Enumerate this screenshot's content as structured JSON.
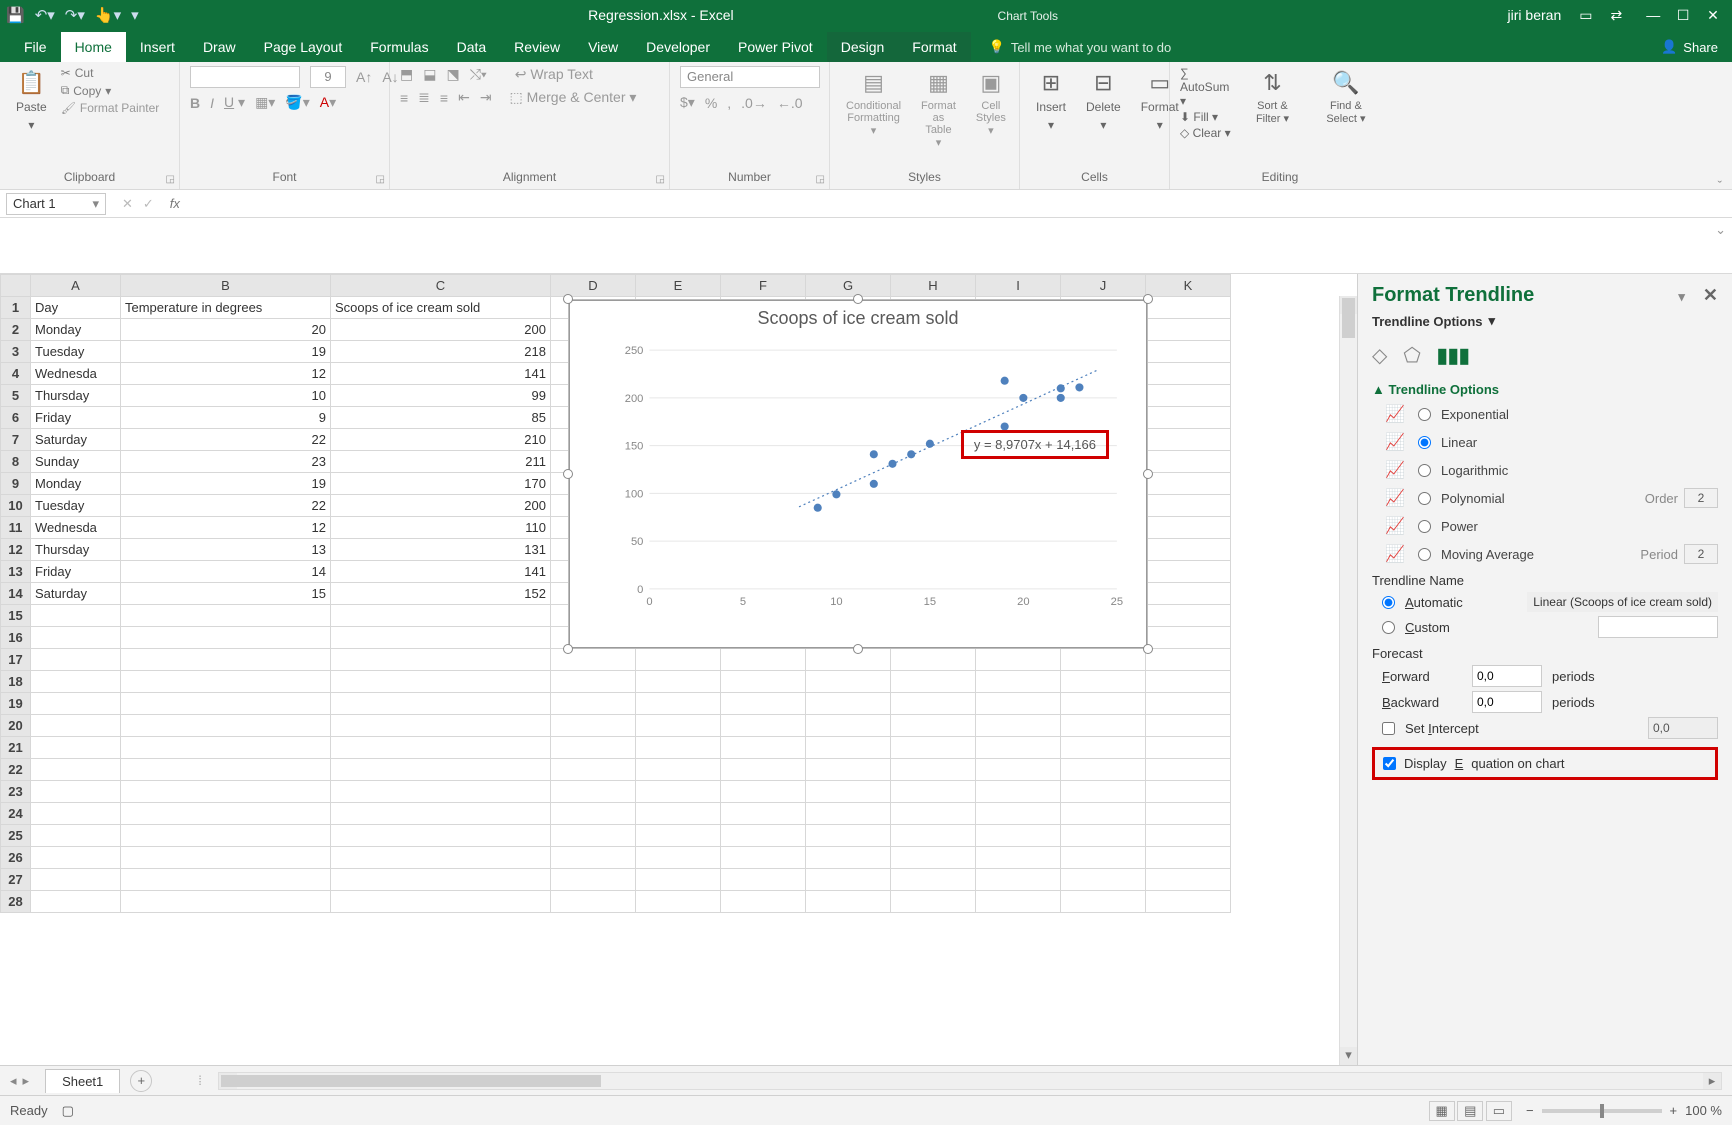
{
  "titlebar": {
    "filename": "Regression.xlsx  -  Excel",
    "chart_tools": "Chart Tools",
    "username": "jiri beran"
  },
  "tabs": {
    "file": "File",
    "items": [
      "Home",
      "Insert",
      "Draw",
      "Page Layout",
      "Formulas",
      "Data",
      "Review",
      "View",
      "Developer",
      "Power Pivot"
    ],
    "context": [
      "Design",
      "Format"
    ],
    "tellme": "Tell me what you want to do",
    "share": "Share"
  },
  "ribbon": {
    "clipboard": {
      "label": "Clipboard",
      "paste": "Paste",
      "cut": "Cut",
      "copy": "Copy",
      "fp": "Format Painter"
    },
    "font": {
      "label": "Font",
      "size": "9"
    },
    "alignment": {
      "label": "Alignment",
      "wrap": "Wrap Text",
      "merge": "Merge & Center"
    },
    "number": {
      "label": "Number",
      "format": "General"
    },
    "styles": {
      "label": "Styles",
      "cf": "Conditional Formatting",
      "fat": "Format as Table",
      "cs": "Cell Styles"
    },
    "cells": {
      "label": "Cells",
      "insert": "Insert",
      "delete": "Delete",
      "format": "Format"
    },
    "editing": {
      "label": "Editing",
      "autosum": "AutoSum",
      "fill": "Fill",
      "clear": "Clear",
      "sort": "Sort & Filter",
      "find": "Find & Select"
    }
  },
  "namebox": "Chart 1",
  "columns": [
    "A",
    "B",
    "C",
    "D",
    "E",
    "F",
    "G",
    "H",
    "I",
    "J",
    "K"
  ],
  "headers": {
    "A": "Day",
    "B": "Temperature in degrees",
    "C": "Scoops of ice cream sold"
  },
  "rows": [
    {
      "r": 1,
      "A": "Day",
      "B": "Temperature in degrees",
      "C": "Scoops of ice cream sold",
      "Bnum": false,
      "Cnum": false
    },
    {
      "r": 2,
      "A": "Monday",
      "B": "20",
      "C": "200"
    },
    {
      "r": 3,
      "A": "Tuesday",
      "B": "19",
      "C": "218"
    },
    {
      "r": 4,
      "A": "Wednesda",
      "B": "12",
      "C": "141"
    },
    {
      "r": 5,
      "A": "Thursday",
      "B": "10",
      "C": "99"
    },
    {
      "r": 6,
      "A": "Friday",
      "B": "9",
      "C": "85"
    },
    {
      "r": 7,
      "A": "Saturday",
      "B": "22",
      "C": "210"
    },
    {
      "r": 8,
      "A": "Sunday",
      "B": "23",
      "C": "211"
    },
    {
      "r": 9,
      "A": "Monday",
      "B": "19",
      "C": "170"
    },
    {
      "r": 10,
      "A": "Tuesday",
      "B": "22",
      "C": "200"
    },
    {
      "r": 11,
      "A": "Wednesda",
      "B": "12",
      "C": "110"
    },
    {
      "r": 12,
      "A": "Thursday",
      "B": "13",
      "C": "131"
    },
    {
      "r": 13,
      "A": "Friday",
      "B": "14",
      "C": "141"
    },
    {
      "r": 14,
      "A": "Saturday",
      "B": "15",
      "C": "152"
    }
  ],
  "blank_rows": [
    15,
    16,
    17,
    18,
    19,
    20,
    21,
    22,
    23,
    24,
    25,
    26,
    27,
    28
  ],
  "chart": {
    "title": "Scoops of ice cream sold",
    "type": "scatter",
    "x": [
      20,
      19,
      12,
      10,
      9,
      22,
      23,
      19,
      22,
      12,
      13,
      14,
      15
    ],
    "y": [
      200,
      218,
      141,
      99,
      85,
      210,
      211,
      170,
      200,
      110,
      131,
      141,
      152
    ],
    "xlim": [
      0,
      25
    ],
    "xtick_step": 5,
    "ylim": [
      0,
      250
    ],
    "ytick_step": 50,
    "point_color": "#4f81bd",
    "point_radius": 4,
    "trendline": {
      "slope": 8.9707,
      "intercept": 14.166,
      "color": "#4f81bd",
      "dash": "2 3"
    },
    "equation_label": "y = 8,9707x + 14,166",
    "background_color": "#ffffff",
    "grid_color": "#e6e6e6",
    "axis_label_color": "#888888",
    "axis_fontsize": 11,
    "title_fontsize": 18
  },
  "pane": {
    "title": "Format Trendline",
    "subtitle": "Trendline Options",
    "section": "Trendline Options",
    "options": {
      "exponential": "Exponential",
      "linear": "Linear",
      "logarithmic": "Logarithmic",
      "polynomial": "Polynomial",
      "order_label": "Order",
      "order_value": "2",
      "power": "Power",
      "moving": "Moving Average",
      "period_label": "Period",
      "period_value": "2"
    },
    "trendline_name": "Trendline Name",
    "automatic": "Automatic",
    "auto_value": "Linear (Scoops of ice cream sold)",
    "custom": "Custom",
    "forecast": "Forecast",
    "forward": "Forward",
    "forward_val": "0,0",
    "backward": "Backward",
    "backward_val": "0,0",
    "periods": "periods",
    "set_intercept": "Set Intercept",
    "intercept_val": "0,0",
    "display_eq": "Display Equation on chart"
  },
  "sheet_tab": "Sheet1",
  "status": {
    "ready": "Ready",
    "zoom": "100 %"
  }
}
